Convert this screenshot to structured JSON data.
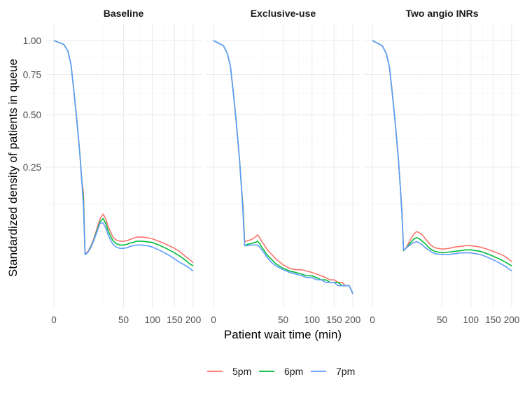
{
  "chart_data": {
    "type": "line",
    "facets": [
      "Baseline",
      "Exclusive-use",
      "Two angio INRs"
    ],
    "xlabel": "Patient wait time (min)",
    "ylabel": "Standardized density of patients in queue",
    "x_ticks": [
      0,
      50,
      100,
      150,
      200
    ],
    "y_ticks": [
      1.0,
      0.75,
      0.5,
      0.25
    ],
    "y_tick_labels": [
      "1.00",
      "0.75",
      "0.50",
      "0.25"
    ],
    "x_scale": "sqrt",
    "y_scale": "sqrt",
    "xlim": [
      0,
      200
    ],
    "ylim": [
      0,
      1.0
    ],
    "grid": true,
    "legend_position": "bottom",
    "legend": [
      "5pm",
      "6pm",
      "7pm"
    ],
    "colors": {
      "5pm": "#F8766D",
      "6pm": "#00BA38",
      "7pm": "#619CFF"
    },
    "panels": [
      {
        "facet": "Baseline",
        "series": [
          {
            "name": "5pm",
            "x": [
              0,
              1,
              2,
              3,
              4,
              5,
              6,
              7,
              8,
              9,
              10,
              11,
              12,
              14,
              16,
              18,
              20,
              22,
              25,
              28,
              30,
              33,
              36,
              40,
              45,
              50,
              55,
              60,
              65,
              70,
              80,
              90,
              100,
              110,
              120,
              130,
              140,
              150,
              160,
              170,
              180,
              190,
              200
            ],
            "y": [
              1.0,
              0.97,
              0.92,
              0.82,
              0.66,
              0.52,
              0.4,
              0.3,
              0.2,
              0.16,
              0.025,
              0.026,
              0.028,
              0.035,
              0.045,
              0.058,
              0.073,
              0.088,
              0.099,
              0.086,
              0.072,
              0.06,
              0.05,
              0.045,
              0.043,
              0.043,
              0.044,
              0.046,
              0.048,
              0.05,
              0.05,
              0.049,
              0.047,
              0.044,
              0.041,
              0.038,
              0.035,
              0.032,
              0.029,
              0.025,
              0.021,
              0.018,
              0.015
            ]
          },
          {
            "name": "6pm",
            "x": [
              0,
              1,
              2,
              3,
              4,
              5,
              6,
              7,
              8,
              9,
              10,
              11,
              12,
              14,
              16,
              18,
              20,
              22,
              25,
              28,
              30,
              33,
              36,
              40,
              45,
              50,
              55,
              60,
              65,
              70,
              80,
              90,
              100,
              110,
              120,
              130,
              140,
              150,
              160,
              170,
              180,
              190,
              200
            ],
            "y": [
              1.0,
              0.97,
              0.92,
              0.82,
              0.66,
              0.52,
              0.4,
              0.3,
              0.2,
              0.14,
              0.024,
              0.025,
              0.027,
              0.034,
              0.043,
              0.055,
              0.068,
              0.081,
              0.088,
              0.076,
              0.063,
              0.052,
              0.044,
              0.039,
              0.037,
              0.037,
              0.038,
              0.04,
              0.041,
              0.043,
              0.043,
              0.042,
              0.041,
              0.038,
              0.035,
              0.032,
              0.029,
              0.026,
              0.023,
              0.02,
              0.017,
              0.014,
              0.012
            ]
          },
          {
            "name": "7pm",
            "x": [
              0,
              1,
              2,
              3,
              4,
              5,
              6,
              7,
              8,
              9,
              10,
              11,
              12,
              14,
              16,
              18,
              20,
              22,
              25,
              28,
              30,
              33,
              36,
              40,
              45,
              50,
              55,
              60,
              65,
              70,
              80,
              90,
              100,
              110,
              120,
              130,
              140,
              150,
              160,
              170,
              180,
              190,
              200
            ],
            "y": [
              1.0,
              0.97,
              0.92,
              0.82,
              0.66,
              0.52,
              0.4,
              0.3,
              0.2,
              0.12,
              0.024,
              0.025,
              0.027,
              0.033,
              0.042,
              0.053,
              0.065,
              0.078,
              0.078,
              0.066,
              0.055,
              0.045,
              0.038,
              0.034,
              0.032,
              0.032,
              0.033,
              0.035,
              0.036,
              0.037,
              0.037,
              0.036,
              0.034,
              0.031,
              0.028,
              0.025,
              0.022,
              0.019,
              0.016,
              0.014,
              0.012,
              0.01,
              0.008
            ]
          }
        ]
      },
      {
        "facet": "Exclusive-use",
        "series": [
          {
            "name": "5pm",
            "x": [
              0,
              1,
              2,
              3,
              4,
              5,
              6,
              7,
              8,
              9,
              10,
              11,
              12,
              14,
              16,
              18,
              20,
              22,
              24,
              27,
              30,
              35,
              40,
              50,
              60,
              70,
              80,
              90,
              100,
              110,
              120,
              130,
              140,
              150,
              160,
              170,
              180,
              190,
              200
            ],
            "y": [
              1.0,
              0.96,
              0.9,
              0.8,
              0.64,
              0.5,
              0.38,
              0.28,
              0.18,
              0.12,
              0.042,
              0.043,
              0.044,
              0.045,
              0.047,
              0.05,
              0.054,
              0.049,
              0.043,
              0.036,
              0.03,
              0.024,
              0.019,
              0.013,
              0.01,
              0.009,
              0.009,
              0.008,
              0.007,
              0.006,
              0.005,
              0.004,
              0.003,
              0.003,
              0.002,
              0.002,
              0.001,
              0.001,
              0.0
            ]
          },
          {
            "name": "6pm",
            "x": [
              0,
              1,
              2,
              3,
              4,
              5,
              6,
              7,
              8,
              9,
              10,
              11,
              12,
              14,
              16,
              18,
              20,
              22,
              24,
              27,
              30,
              35,
              40,
              50,
              60,
              70,
              80,
              90,
              100,
              110,
              120,
              130,
              140,
              150,
              160,
              170,
              180,
              190,
              200
            ],
            "y": [
              1.0,
              0.96,
              0.9,
              0.8,
              0.64,
              0.5,
              0.38,
              0.28,
              0.18,
              0.11,
              0.036,
              0.037,
              0.038,
              0.039,
              0.04,
              0.041,
              0.043,
              0.039,
              0.034,
              0.028,
              0.023,
              0.018,
              0.014,
              0.01,
              0.008,
              0.007,
              0.006,
              0.005,
              0.005,
              0.004,
              0.003,
              0.003,
              0.002,
              0.002,
              0.002,
              0.001,
              0.001,
              0.001,
              0.0
            ]
          },
          {
            "name": "7pm",
            "x": [
              0,
              1,
              2,
              3,
              4,
              5,
              6,
              7,
              8,
              9,
              10,
              11,
              12,
              14,
              16,
              18,
              20,
              22,
              24,
              27,
              30,
              35,
              40,
              50,
              60,
              70,
              80,
              90,
              100,
              110,
              120,
              130,
              140,
              150,
              160,
              170,
              180,
              190,
              200
            ],
            "y": [
              1.0,
              0.96,
              0.9,
              0.8,
              0.64,
              0.5,
              0.38,
              0.28,
              0.18,
              0.1,
              0.036,
              0.036,
              0.036,
              0.037,
              0.037,
              0.037,
              0.037,
              0.034,
              0.03,
              0.025,
              0.02,
              0.015,
              0.012,
              0.009,
              0.007,
              0.006,
              0.005,
              0.004,
              0.004,
              0.003,
              0.003,
              0.002,
              0.002,
              0.002,
              0.001,
              0.001,
              0.001,
              0.001,
              0.0
            ]
          }
        ]
      },
      {
        "facet": "Two angio INRs",
        "series": [
          {
            "name": "5pm",
            "x": [
              0,
              1,
              2,
              3,
              4,
              5,
              6,
              7,
              8,
              9,
              10,
              11,
              12,
              14,
              16,
              18,
              20,
              22,
              25,
              28,
              30,
              35,
              40,
              50,
              60,
              70,
              80,
              90,
              100,
              110,
              120,
              130,
              140,
              150,
              160,
              170,
              180,
              190,
              200
            ],
            "y": [
              1.0,
              0.96,
              0.9,
              0.8,
              0.64,
              0.5,
              0.38,
              0.28,
              0.18,
              0.11,
              0.029,
              0.031,
              0.034,
              0.042,
              0.05,
              0.056,
              0.06,
              0.059,
              0.055,
              0.049,
              0.045,
              0.037,
              0.033,
              0.031,
              0.032,
              0.034,
              0.035,
              0.036,
              0.036,
              0.035,
              0.034,
              0.032,
              0.03,
              0.028,
              0.026,
              0.024,
              0.022,
              0.019,
              0.016
            ]
          },
          {
            "name": "6pm",
            "x": [
              0,
              1,
              2,
              3,
              4,
              5,
              6,
              7,
              8,
              9,
              10,
              11,
              12,
              14,
              16,
              18,
              20,
              22,
              25,
              28,
              30,
              35,
              40,
              50,
              60,
              70,
              80,
              90,
              100,
              110,
              120,
              130,
              140,
              150,
              160,
              170,
              180,
              190,
              200
            ],
            "y": [
              1.0,
              0.96,
              0.9,
              0.8,
              0.64,
              0.5,
              0.38,
              0.28,
              0.18,
              0.1,
              0.029,
              0.031,
              0.033,
              0.038,
              0.043,
              0.047,
              0.049,
              0.048,
              0.044,
              0.04,
              0.037,
              0.031,
              0.028,
              0.026,
              0.027,
              0.028,
              0.029,
              0.03,
              0.03,
              0.029,
              0.028,
              0.026,
              0.024,
              0.022,
              0.02,
              0.018,
              0.016,
              0.014,
              0.012
            ]
          },
          {
            "name": "7pm",
            "x": [
              0,
              1,
              2,
              3,
              4,
              5,
              6,
              7,
              8,
              9,
              10,
              11,
              12,
              14,
              16,
              18,
              20,
              22,
              25,
              28,
              30,
              35,
              40,
              50,
              60,
              70,
              80,
              90,
              100,
              110,
              120,
              130,
              140,
              150,
              160,
              170,
              180,
              190,
              200
            ],
            "y": [
              1.0,
              0.96,
              0.9,
              0.8,
              0.64,
              0.5,
              0.38,
              0.28,
              0.18,
              0.1,
              0.03,
              0.031,
              0.033,
              0.036,
              0.039,
              0.041,
              0.042,
              0.041,
              0.038,
              0.034,
              0.032,
              0.028,
              0.025,
              0.024,
              0.024,
              0.025,
              0.026,
              0.026,
              0.026,
              0.025,
              0.024,
              0.022,
              0.02,
              0.018,
              0.016,
              0.014,
              0.012,
              0.01,
              0.008
            ]
          }
        ]
      }
    ]
  }
}
